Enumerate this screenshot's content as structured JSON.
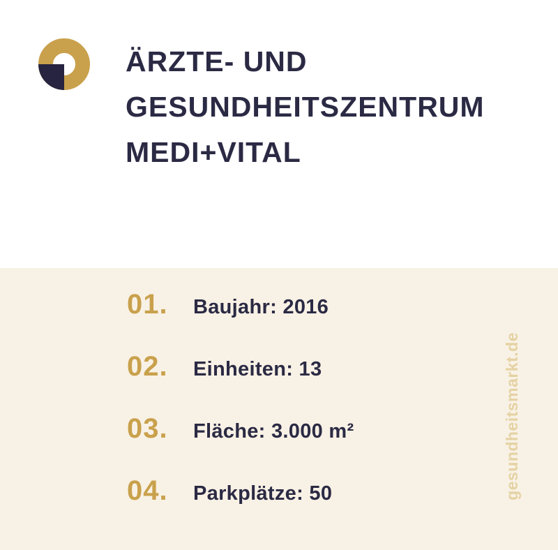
{
  "header": {
    "title": "ÄRZTE- UND GESUNDHEITSZENTRUM MEDI+VITAL",
    "logo": {
      "icon": "ring-quarter-logo-icon",
      "ring_color": "#C9A14C",
      "quarter_color": "#262440"
    }
  },
  "facts": {
    "items": [
      {
        "number": "01.",
        "label": "Baujahr: 2016"
      },
      {
        "number": "02.",
        "label": "Einheiten: 13"
      },
      {
        "number": "03.",
        "label": "Fläche: 3.000 m²"
      },
      {
        "number": "04.",
        "label": "Parkplätze: 50"
      }
    ]
  },
  "watermark": {
    "text": "gesundheitsmarkt.de",
    "color": "#E5D2A3"
  },
  "colors": {
    "gold": "#C9A14C",
    "navy": "#2B2A44",
    "cream_background": "#F8F1E5",
    "top_background": "#FFFFFF"
  }
}
